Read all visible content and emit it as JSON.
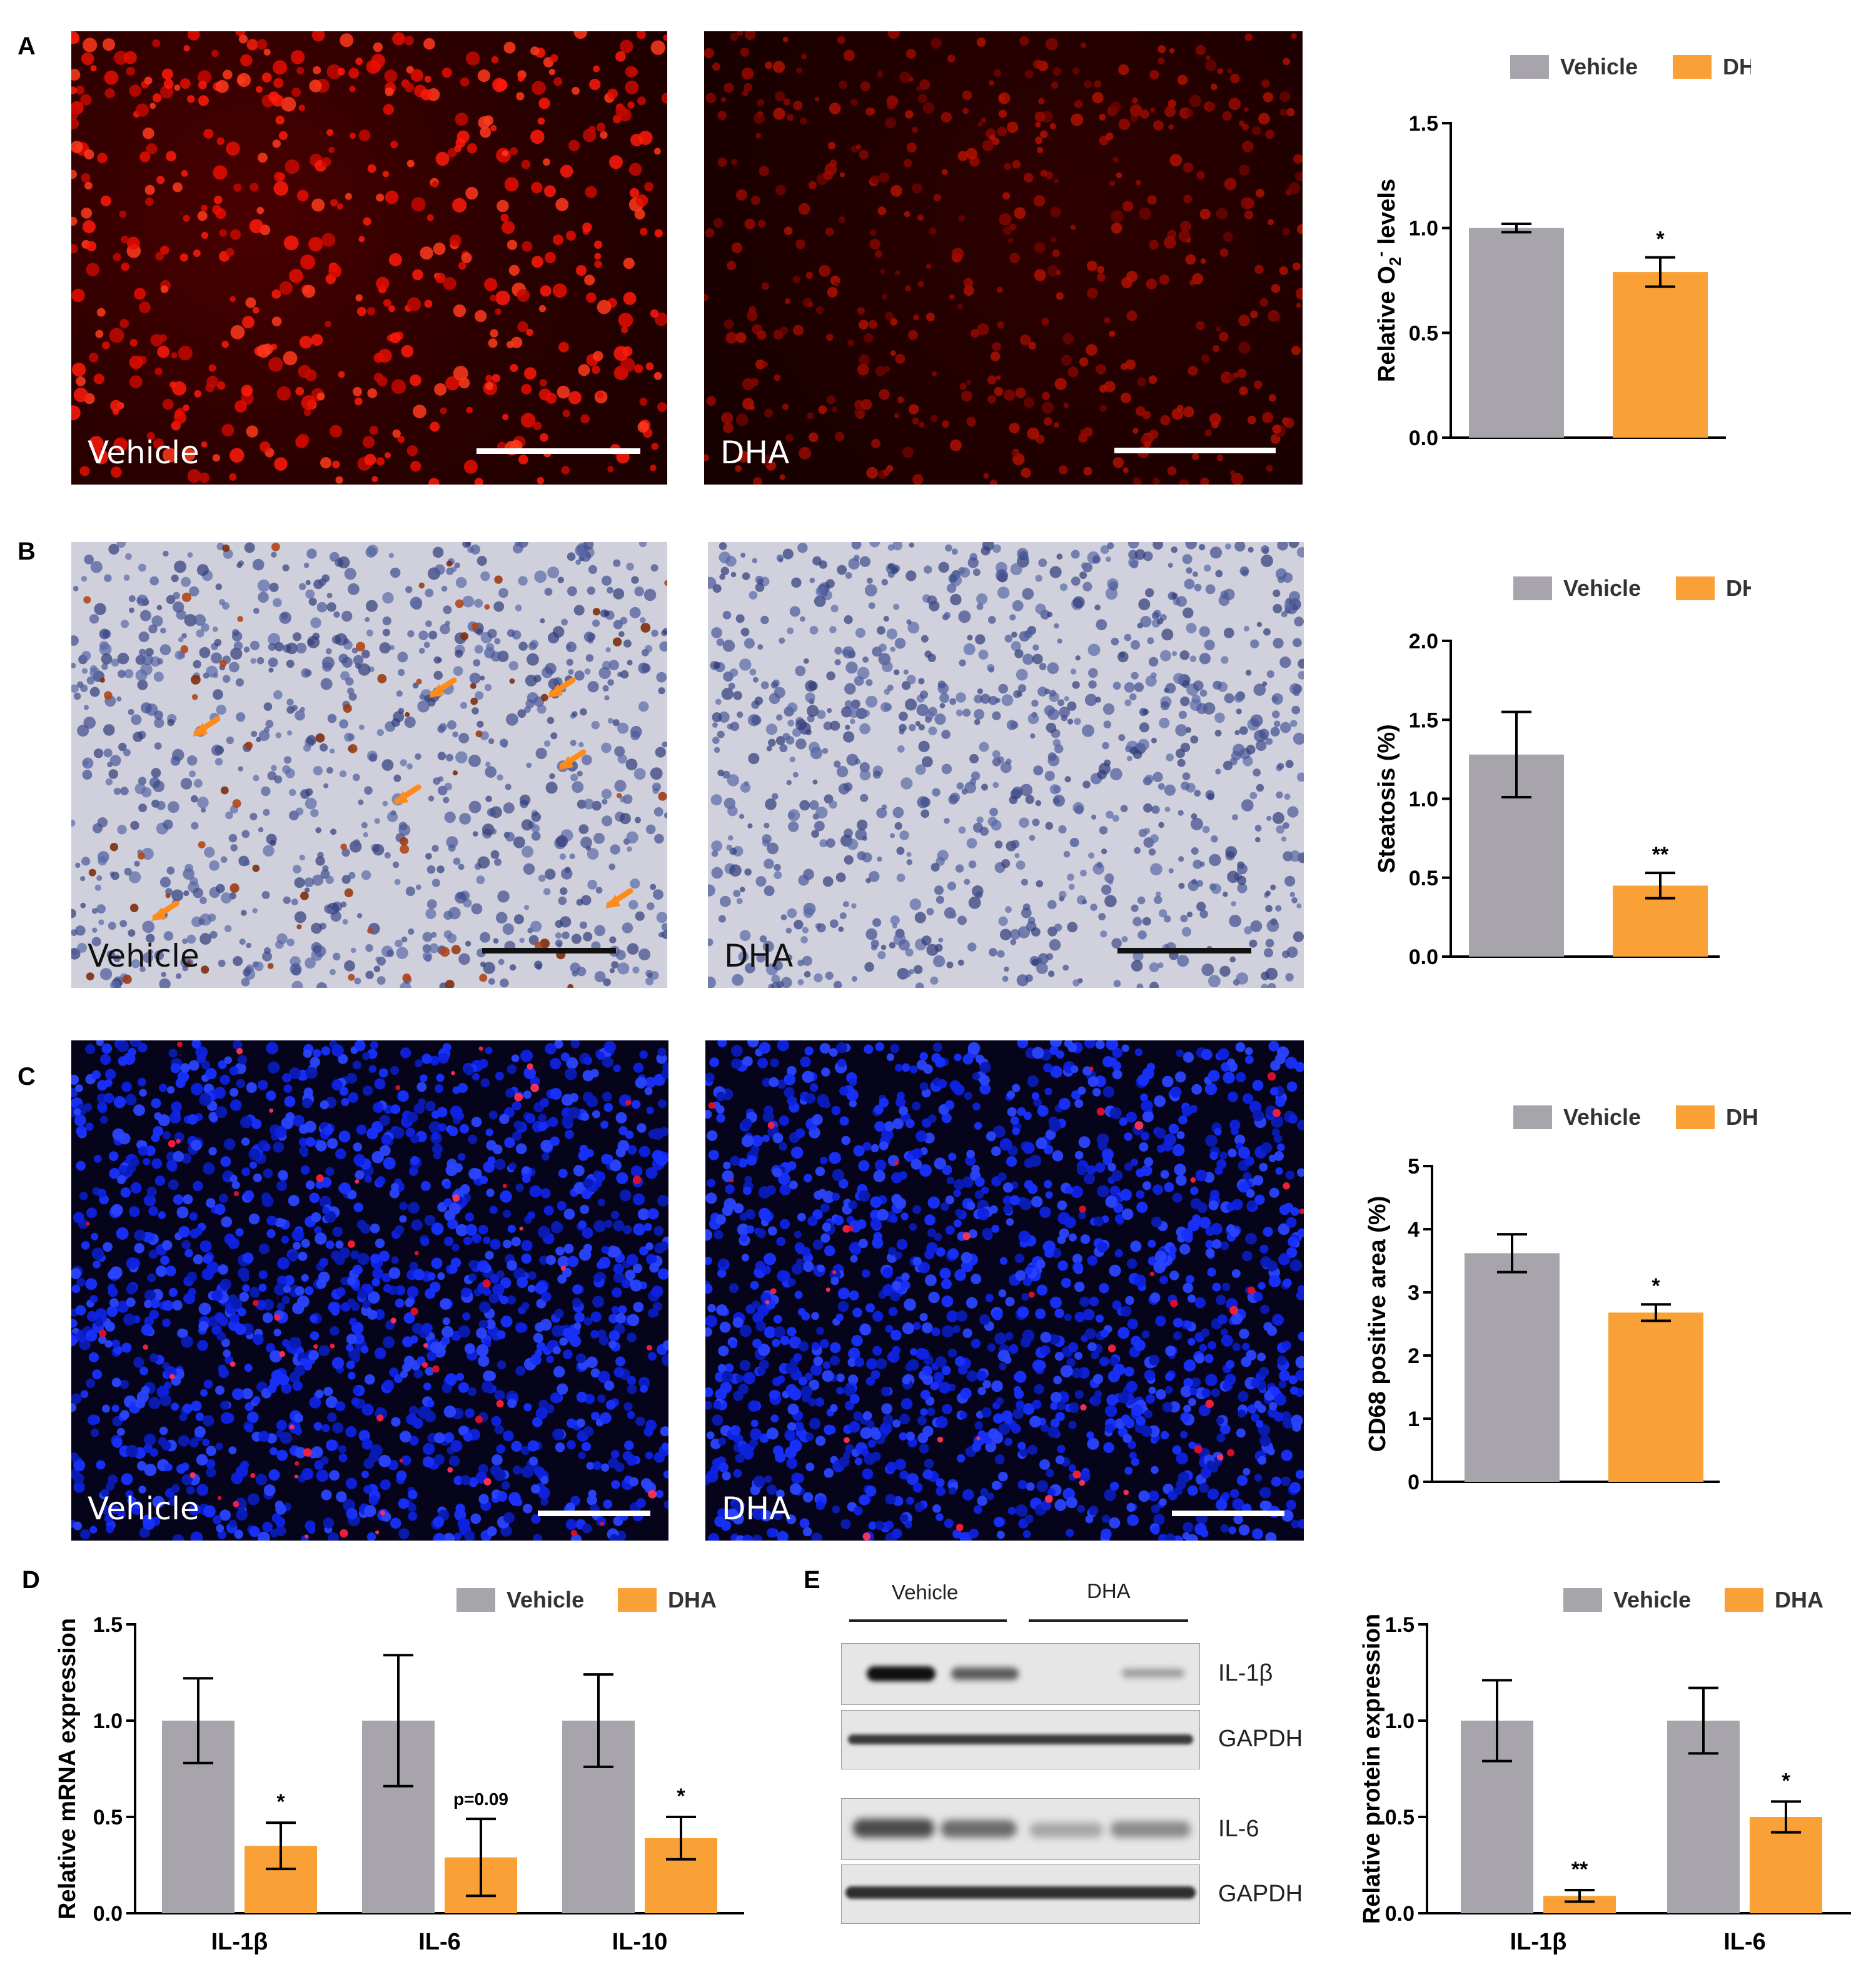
{
  "colors": {
    "vehicle": "#a7a5ab",
    "dha": "#f9a136",
    "axis": "#000000"
  },
  "panels": {
    "A": {
      "letter": "A",
      "left_caption": "Vehicle",
      "right_caption": "DHA"
    },
    "B": {
      "letter": "B",
      "left_caption": "Vehicle",
      "right_caption": "DHA"
    },
    "C": {
      "letter": "C",
      "left_caption": "Vehicle",
      "right_caption": "DHA"
    },
    "D": {
      "letter": "D"
    },
    "E": {
      "letter": "E",
      "group_labels": [
        "Vehicle",
        "DHA"
      ],
      "band_labels": [
        "IL-1β",
        "GAPDH",
        "IL-6",
        "GAPDH"
      ]
    }
  },
  "chart_data": [
    {
      "id": "A",
      "type": "bar",
      "categories": [
        "Vehicle",
        "DHA"
      ],
      "series": [
        {
          "name": "Relative O2- levels",
          "values": [
            1.0,
            0.79
          ]
        }
      ],
      "errors": [
        0.02,
        0.07
      ],
      "significance": [
        "",
        "*"
      ],
      "ylabel": "Relative O2- levels",
      "ylabel_main": "Relative O",
      "ylabel_sub": "2",
      "ylabel_sup": "-",
      "ylabel_tail": " levels",
      "ylim": [
        0,
        1.5
      ],
      "yticks": [
        "0.0",
        "0.5",
        "1.0",
        "1.5"
      ],
      "legend": [
        "Vehicle",
        "DHA"
      ]
    },
    {
      "id": "B",
      "type": "bar",
      "categories": [
        "Vehicle",
        "DHA"
      ],
      "series": [
        {
          "name": "Steatosis (%)",
          "values": [
            1.28,
            0.45
          ]
        }
      ],
      "errors": [
        0.27,
        0.08
      ],
      "significance": [
        "",
        "**"
      ],
      "ylabel": "Steatosis (%)",
      "ylim": [
        0,
        2.0
      ],
      "yticks": [
        "0.0",
        "0.5",
        "1.0",
        "1.5",
        "2.0"
      ],
      "legend": [
        "Vehicle",
        "DHA"
      ]
    },
    {
      "id": "C",
      "type": "bar",
      "categories": [
        "Vehicle",
        "DHA"
      ],
      "series": [
        {
          "name": "CD68 positive area (%)",
          "values": [
            3.62,
            2.68
          ]
        }
      ],
      "errors": [
        0.3,
        0.13
      ],
      "significance": [
        "",
        "*"
      ],
      "ylabel": "CD68 positive area (%)",
      "ylim": [
        0,
        5
      ],
      "yticks": [
        "0",
        "1",
        "2",
        "3",
        "4",
        "5"
      ],
      "legend": [
        "Vehicle",
        "DHA"
      ]
    },
    {
      "id": "D",
      "type": "bar",
      "categories": [
        "IL-1β",
        "IL-6",
        "IL-10"
      ],
      "series": [
        {
          "name": "Vehicle",
          "values": [
            1.0,
            1.0,
            1.0
          ]
        },
        {
          "name": "DHA",
          "values": [
            0.35,
            0.29,
            0.39
          ]
        }
      ],
      "errors": [
        [
          0.22,
          0.34,
          0.24
        ],
        [
          0.12,
          0.2,
          0.11
        ]
      ],
      "significance": [
        "*",
        "p=0.09",
        "*"
      ],
      "ylabel": "Relative mRNA expression",
      "ylim": [
        0,
        1.5
      ],
      "yticks": [
        "0.0",
        "0.5",
        "1.0",
        "1.5"
      ],
      "legend": [
        "Vehicle",
        "DHA"
      ]
    },
    {
      "id": "E",
      "type": "bar",
      "categories": [
        "IL-1β",
        "IL-6"
      ],
      "series": [
        {
          "name": "Vehicle",
          "values": [
            1.0,
            1.0
          ]
        },
        {
          "name": "DHA",
          "values": [
            0.09,
            0.5
          ]
        }
      ],
      "errors": [
        [
          0.21,
          0.17
        ],
        [
          0.03,
          0.08
        ]
      ],
      "significance": [
        "**",
        "*"
      ],
      "ylabel": "Relative protein expression",
      "ylim": [
        0,
        1.5
      ],
      "yticks": [
        "0.0",
        "0.5",
        "1.0",
        "1.5"
      ],
      "legend": [
        "Vehicle",
        "DHA"
      ]
    }
  ]
}
